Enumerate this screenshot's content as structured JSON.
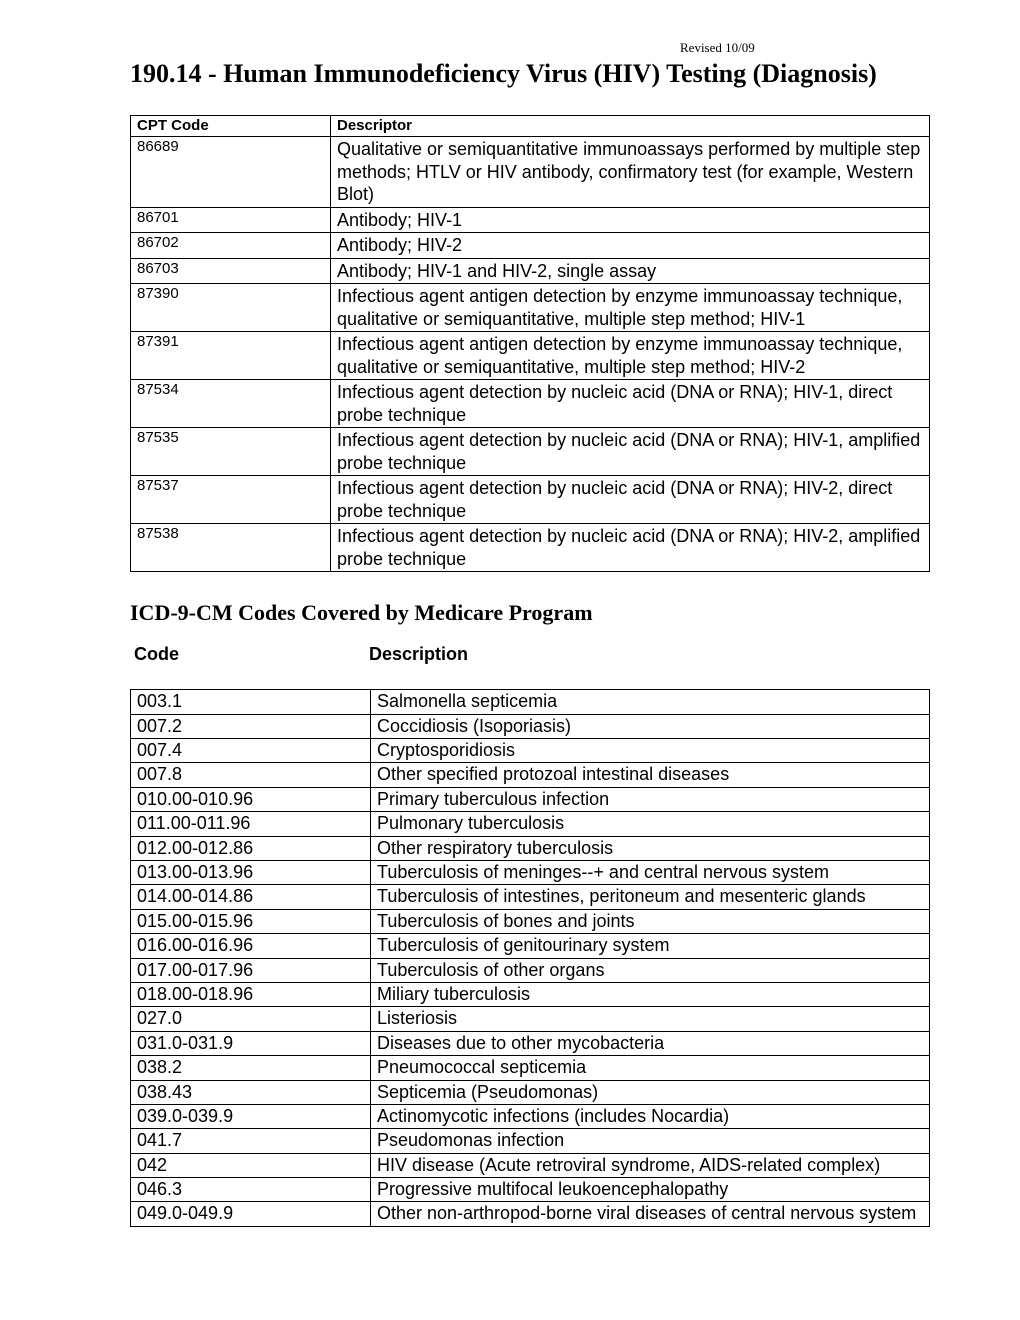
{
  "revised_text": "Revised 10/09",
  "page_title": "190.14 - Human Immunodeficiency Virus (HIV) Testing (Diagnosis)",
  "cpt_table": {
    "headers": {
      "code": "CPT Code",
      "descriptor": "Descriptor"
    },
    "rows": [
      {
        "code": "86689",
        "descriptor": "Qualitative or semiquantitative immunoassays performed by multiple step methods; HTLV or HIV antibody, confirmatory test (for example, Western Blot)"
      },
      {
        "code": "86701",
        "descriptor": "Antibody; HIV-1"
      },
      {
        "code": "86702",
        "descriptor": "Antibody; HIV-2"
      },
      {
        "code": "86703",
        "descriptor": "Antibody; HIV-1 and HIV-2, single assay"
      },
      {
        "code": "87390",
        "descriptor": "Infectious agent antigen detection by enzyme immunoassay technique, qualitative or semiquantitative, multiple step method; HIV-1"
      },
      {
        "code": "87391",
        "descriptor": "Infectious agent antigen detection by enzyme immunoassay technique, qualitative or semiquantitative, multiple step method; HIV-2"
      },
      {
        "code": "87534",
        "descriptor": "Infectious agent detection by nucleic acid (DNA or RNA); HIV-1, direct probe technique"
      },
      {
        "code": "87535",
        "descriptor": "Infectious agent detection by nucleic acid (DNA or RNA); HIV-1, amplified probe technique"
      },
      {
        "code": "87537",
        "descriptor": "Infectious agent detection by nucleic acid (DNA or RNA); HIV-2, direct probe technique"
      },
      {
        "code": "87538",
        "descriptor": "Infectious agent detection by nucleic acid (DNA or RNA); HIV-2, amplified probe technique"
      }
    ]
  },
  "section_title": "ICD-9-CM Codes Covered by Medicare Program",
  "icd_headers": {
    "code": "Code",
    "description": "Description"
  },
  "icd_table": {
    "rows": [
      {
        "code": "003.1",
        "description": "Salmonella septicemia"
      },
      {
        "code": "007.2",
        "description": "Coccidiosis (Isoporiasis)"
      },
      {
        "code": "007.4",
        "description": "Cryptosporidiosis"
      },
      {
        "code": "007.8",
        "description": "Other specified protozoal intestinal diseases"
      },
      {
        "code": "010.00-010.96",
        "description": "Primary tuberculous infection"
      },
      {
        "code": "011.00-011.96",
        "description": "Pulmonary tuberculosis"
      },
      {
        "code": "012.00-012.86",
        "description": "Other respiratory tuberculosis"
      },
      {
        "code": "013.00-013.96",
        "description": "Tuberculosis of meninges--+ and central nervous system"
      },
      {
        "code": "014.00-014.86",
        "description": "Tuberculosis of intestines, peritoneum and mesenteric glands"
      },
      {
        "code": "015.00-015.96",
        "description": "Tuberculosis of bones and joints"
      },
      {
        "code": "016.00-016.96",
        "description": "Tuberculosis of genitourinary system"
      },
      {
        "code": "017.00-017.96",
        "description": "Tuberculosis of other organs"
      },
      {
        "code": "018.00-018.96",
        "description": "Miliary tuberculosis"
      },
      {
        "code": "027.0",
        "description": "Listeriosis"
      },
      {
        "code": "031.0-031.9",
        "description": "Diseases due to other mycobacteria"
      },
      {
        "code": "038.2",
        "description": "Pneumococcal septicemia"
      },
      {
        "code": "038.43",
        "description": "Septicemia (Pseudomonas)"
      },
      {
        "code": "039.0-039.9",
        "description": "Actinomycotic infections (includes Nocardia)"
      },
      {
        "code": "041.7",
        "description": "Pseudomonas infection"
      },
      {
        "code": "042",
        "description": "HIV disease (Acute retroviral syndrome, AIDS-related complex)"
      },
      {
        "code": "046.3",
        "description": "Progressive multifocal leukoencephalopathy"
      },
      {
        "code": "049.0-049.9",
        "description": "Other non-arthropod-borne viral diseases of central nervous system"
      }
    ]
  }
}
